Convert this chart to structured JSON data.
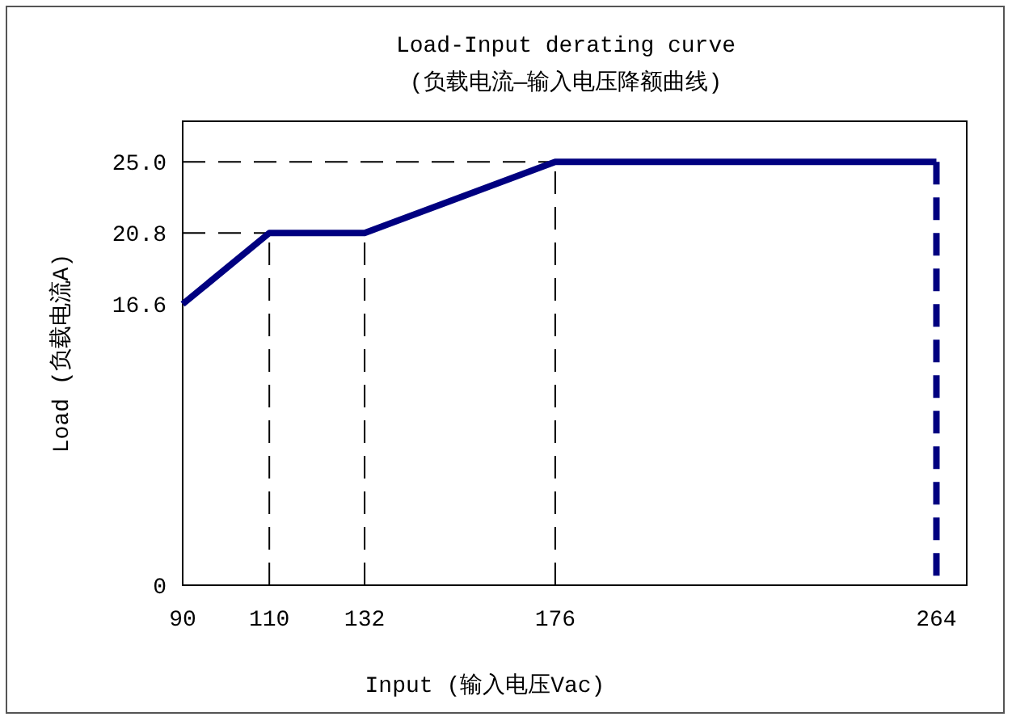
{
  "chart_data": {
    "type": "line",
    "title": "Load-Input derating curve",
    "subtitle": "(负载电流—输入电压降额曲线)",
    "xlabel": "Input  (输入电压Vac)",
    "ylabel": "Load (负载电流A)",
    "xlim": [
      90,
      271
    ],
    "ylim": [
      0,
      27.4
    ],
    "xticks": [
      90,
      110,
      132,
      176,
      264
    ],
    "yticks": [
      0,
      16.6,
      20.8,
      {
        "value": 25,
        "label": "25.0"
      }
    ],
    "series": [
      {
        "x": [
          90,
          110,
          132,
          176,
          264
        ],
        "values": [
          16.6,
          20.8,
          20.8,
          25,
          25
        ],
        "color": "#000080",
        "line_style": "solid"
      },
      {
        "x": [
          264,
          264
        ],
        "values": [
          25,
          0
        ],
        "color": "#000080",
        "line_style": "dashed"
      }
    ],
    "ref_lines": [
      {
        "axis": "y",
        "value": 25,
        "color": "#000000",
        "line_style": "dashed"
      },
      {
        "axis": "y",
        "value": 20.8,
        "color": "#000000",
        "line_style": "dashed"
      },
      {
        "axis": "x",
        "value": 110,
        "color": "#000000",
        "line_style": "dashed"
      },
      {
        "axis": "x",
        "value": 132,
        "color": "#000000",
        "line_style": "dashed"
      },
      {
        "axis": "x",
        "value": 176,
        "color": "#000000",
        "line_style": "dashed"
      }
    ]
  }
}
